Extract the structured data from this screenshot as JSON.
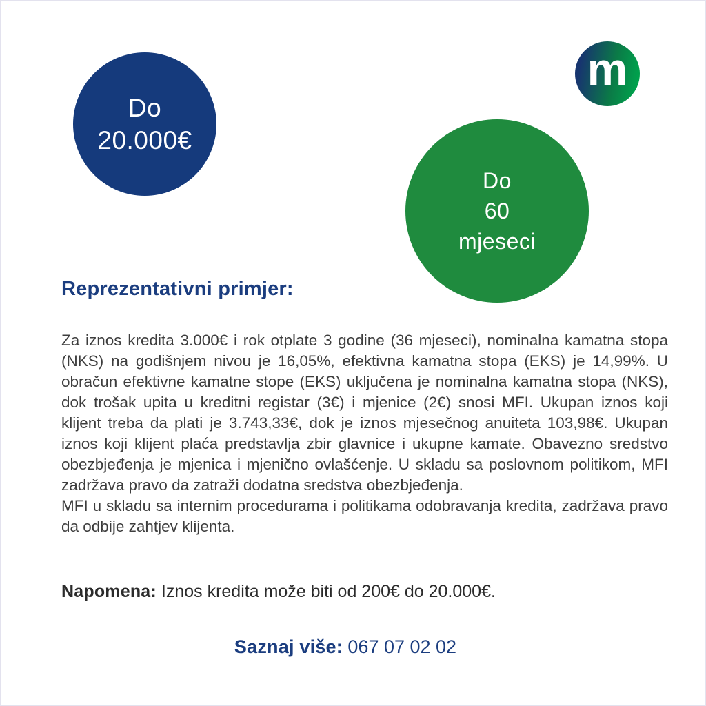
{
  "logo": {
    "letter": "m"
  },
  "amount_badge": {
    "line1": "Do",
    "line2": "20.000€"
  },
  "term_badge": {
    "line1": "Do",
    "line2": "60",
    "line3": "mjeseci"
  },
  "heading": "Reprezentativni primjer:",
  "body": {
    "paragraph1": "Za iznos kredita 3.000€ i rok otplate 3 godine (36 mjeseci), nominalna kamatna stopa (NKS) na godišnjem nivou je 16,05%, efektivna kamatna stopa (EKS) je 14,99%. U obračun efektivne kamatne stope (EKS) uključena je nominalna kamatna stopa (NKS), dok trošak upita u kreditni registar (3€) i mjenice (2€) snosi MFI. Ukupan iznos koji klijent treba da plati je 3.743,33€, dok je iznos mjesečnog anuiteta 103,98€. Ukupan iznos koji klijent plaća predstavlja zbir glavnice i ukupne kamate. Obavezno sredstvo obezbjeđenja je mjenica i mjenično ovlašćenje. U skladu sa poslovnom politikom, MFI zadržava pravo da zatraži dodatna sredstva obezbjeđenja.",
    "paragraph2": "MFI u skladu sa internim procedurama i politikama odobravanja kredita, zadržava pravo da odbije zahtjev klijenta."
  },
  "note": {
    "label": "Napomena:",
    "text": " Iznos kredita može biti od 200€ do 20.000€."
  },
  "cta": {
    "label": "Saznaj više:",
    "phone": " 067 07 02 02"
  },
  "colors": {
    "page_border": "#e3e2ee",
    "amount_badge": "#153a7c",
    "term_badge": "#1f8b3e",
    "accent_blue": "#1b3d7f",
    "body_text": "#3d3d3d",
    "note_text": "#2b2b2b",
    "logo_gradient_start": "#17356f",
    "logo_gradient_mid": "#0b7a47",
    "logo_gradient_end": "#00a04c"
  }
}
